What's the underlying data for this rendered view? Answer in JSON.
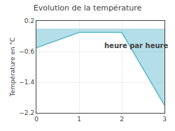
{
  "chart_data": {
    "type": "line",
    "title": "Evolution de la température",
    "ylabel": "Température en °C",
    "annotations": [
      {
        "text": "heure par heure",
        "x": 1.55,
        "y": -0.45
      }
    ],
    "x": [
      0,
      1,
      2,
      3
    ],
    "series": [
      {
        "values": [
          -0.5,
          -0.1,
          -0.1,
          -2.0
        ],
        "color": "#5bb8cc"
      }
    ],
    "xlim": [
      0,
      3
    ],
    "xticks": [
      0,
      1,
      2,
      3
    ],
    "ylim": [
      -2.2,
      0.2
    ],
    "yticks": [
      0.2,
      -0.6,
      -1.4,
      -2.2
    ],
    "grid": true
  }
}
